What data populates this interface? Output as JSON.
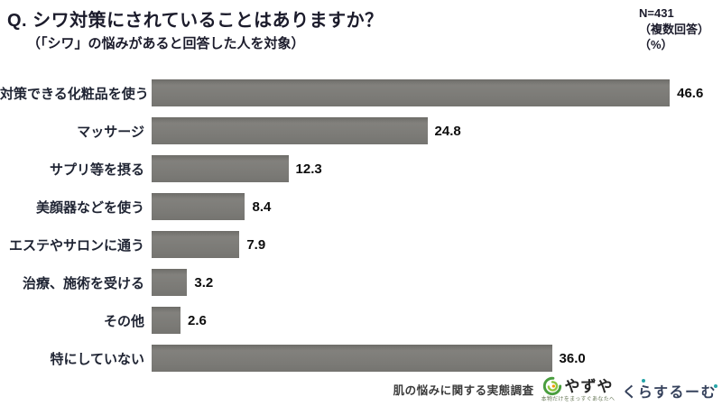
{
  "header": {
    "title": "Q. シワ対策にされていることはありますか？",
    "subtitle": "（「シワ」の悩みがあると回答した人を対象）",
    "n_label": "N=431",
    "n_note1": "（複数回答）",
    "n_note2": "（%）"
  },
  "chart_data": {
    "type": "bar",
    "orientation": "horizontal",
    "categories": [
      "対策できる化粧品を使う",
      "マッサージ",
      "サプリ等を摂る",
      "美顔器などを使う",
      "エステやサロンに通う",
      "治療、施術を受ける",
      "その他",
      "特にしていない"
    ],
    "values": [
      46.6,
      24.8,
      12.3,
      8.4,
      7.9,
      3.2,
      2.6,
      36.0
    ],
    "xlim": [
      0,
      50
    ],
    "grid": false,
    "legend": "none",
    "bar_color": "#7b7a76",
    "value_labels": [
      "46.6",
      "24.8",
      "12.3",
      "8.4",
      "7.9",
      "3.2",
      "2.6",
      "36.0"
    ]
  },
  "footer": {
    "survey_label": "肌の悩みに関する実態調査",
    "yazuya_logo_text": "やずや",
    "yazuya_tagline": "本物だけをまっすぐあなたへ",
    "kurasu_logo_text": "くらするーむ"
  },
  "colors": {
    "title_text": "#1b1b2b",
    "category_text": "#1f2433",
    "value_text": "#0d0d0d",
    "bar": "#7b7a76",
    "yazuya_green": "#4a9e3f",
    "kurasu_navy": "#36425c",
    "kurasu_teal": "#26a5a8"
  }
}
